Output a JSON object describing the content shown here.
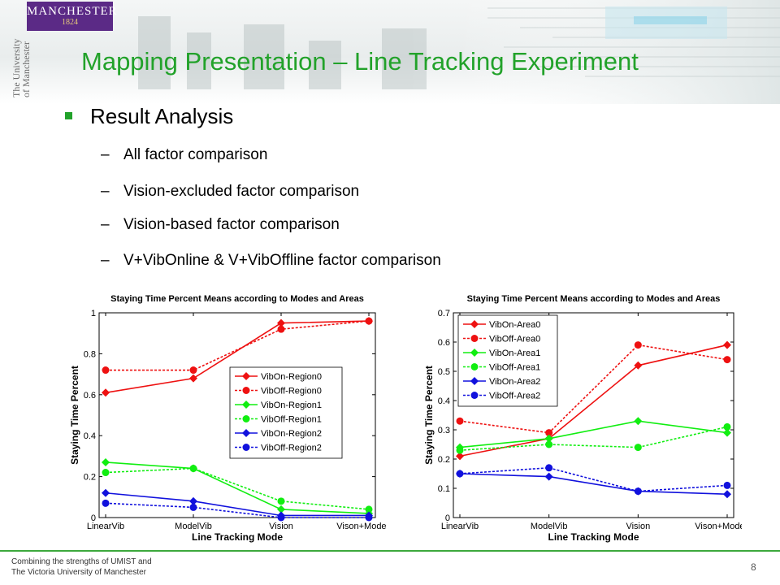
{
  "slide": {
    "title": "Mapping Presentation – Line Tracking Experiment",
    "bullet": "Result Analysis",
    "subitems": [
      "All factor comparison",
      "Vision-excluded factor comparison",
      "Vision-based factor comparison",
      "V+VibOnline & V+VibOffline factor comparison"
    ],
    "dash": "–"
  },
  "logo": {
    "name": "MANCHESTER",
    "year": "1824"
  },
  "side_text": {
    "line1": "The University",
    "line2": "of Manchester"
  },
  "footer": {
    "line1": "Combining the strengths of UMIST and",
    "line2": "The Victoria University of Manchester",
    "page": "8"
  },
  "colors": {
    "title_green": "#22a22a",
    "red": "#ee1111",
    "green": "#11ee11",
    "blue": "#1111dd"
  },
  "chart_data": [
    {
      "type": "line",
      "title": "Staying Time Percent Means according to Modes and Areas",
      "xlabel": "Line Tracking Mode",
      "ylabel": "Staying Time Percent",
      "categories": [
        "LinearVib",
        "ModelVib",
        "Vision",
        "Vison+ModelVib"
      ],
      "ylim": [
        0,
        1
      ],
      "yticks": [
        "0",
        "0.2",
        "0.4",
        "0.6",
        "0.8",
        "1"
      ],
      "legend_position": "right",
      "series": [
        {
          "name": "VibOn-Region0",
          "color": "#ee1111",
          "dashed": false,
          "marker": "diamond",
          "values": [
            0.61,
            0.68,
            0.95,
            0.96
          ]
        },
        {
          "name": "VibOff-Region0",
          "color": "#ee1111",
          "dashed": true,
          "marker": "circle",
          "values": [
            0.72,
            0.72,
            0.92,
            0.96
          ]
        },
        {
          "name": "VibOn-Region1",
          "color": "#11ee11",
          "dashed": false,
          "marker": "diamond",
          "values": [
            0.27,
            0.24,
            0.04,
            0.02
          ]
        },
        {
          "name": "VibOff-Region1",
          "color": "#11ee11",
          "dashed": true,
          "marker": "circle",
          "values": [
            0.22,
            0.24,
            0.08,
            0.04
          ]
        },
        {
          "name": "VibOn-Region2",
          "color": "#1111dd",
          "dashed": false,
          "marker": "diamond",
          "values": [
            0.12,
            0.08,
            0.01,
            0.01
          ]
        },
        {
          "name": "VibOff-Region2",
          "color": "#1111dd",
          "dashed": true,
          "marker": "circle",
          "values": [
            0.07,
            0.05,
            0.0,
            0.0
          ]
        }
      ]
    },
    {
      "type": "line",
      "title": "Staying Time Percent Means according to Modes and Areas",
      "xlabel": "Line Tracking Mode",
      "ylabel": "Staying Time Percent",
      "categories": [
        "LinearVib",
        "ModelVib",
        "Vision",
        "Vison+ModelVib"
      ],
      "ylim": [
        0,
        0.7
      ],
      "yticks": [
        "0",
        "0.1",
        "0.2",
        "0.3",
        "0.4",
        "0.5",
        "0.6",
        "0.7"
      ],
      "legend_position": "top-left",
      "series": [
        {
          "name": "VibOn-Area0",
          "color": "#ee1111",
          "dashed": false,
          "marker": "diamond",
          "values": [
            0.21,
            0.27,
            0.52,
            0.59
          ]
        },
        {
          "name": "VibOff-Area0",
          "color": "#ee1111",
          "dashed": true,
          "marker": "circle",
          "values": [
            0.33,
            0.29,
            0.59,
            0.54
          ]
        },
        {
          "name": "VibOn-Area1",
          "color": "#11ee11",
          "dashed": false,
          "marker": "diamond",
          "values": [
            0.24,
            0.27,
            0.33,
            0.29
          ]
        },
        {
          "name": "VibOff-Area1",
          "color": "#11ee11",
          "dashed": true,
          "marker": "circle",
          "values": [
            0.23,
            0.25,
            0.24,
            0.31
          ]
        },
        {
          "name": "VibOn-Area2",
          "color": "#1111dd",
          "dashed": false,
          "marker": "diamond",
          "values": [
            0.15,
            0.14,
            0.09,
            0.08
          ]
        },
        {
          "name": "VibOff-Area2",
          "color": "#1111dd",
          "dashed": true,
          "marker": "circle",
          "values": [
            0.15,
            0.17,
            0.09,
            0.11
          ]
        }
      ]
    }
  ]
}
